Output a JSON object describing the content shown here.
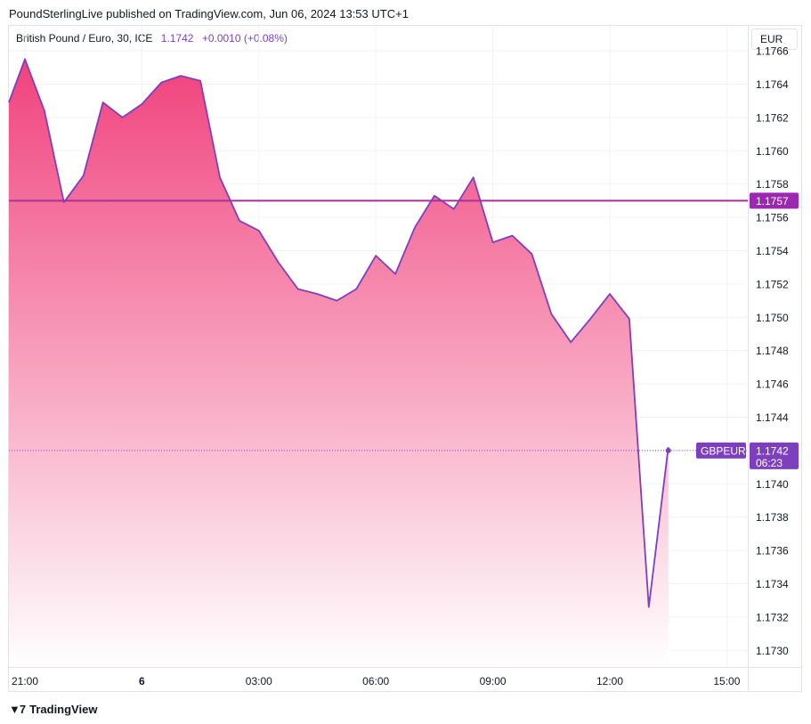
{
  "header": {
    "publisher": "PoundSterlingLive published on TradingView.com, Jun 06, 2024 13:53 UTC+1"
  },
  "legend": {
    "symbol": "British Pound / Euro, 30, ICE",
    "value": "1.1742",
    "change": "+0.0010 (+0.08%)"
  },
  "currency_label": "EUR",
  "footer": {
    "brand": "TradingView",
    "logo_icon": "tradingview-logo-icon"
  },
  "colors": {
    "line": "#7e3fbf",
    "fill_top": "#f0427c",
    "fill_bottom": "#ffffff",
    "level_line": "#a92f9a",
    "level_box": "#9c27b0",
    "price_box": "#7e3fbf",
    "grid": "#f0f2f5"
  },
  "chart_data": {
    "type": "area",
    "title": "British Pound / Euro, 30, ICE",
    "ylim": [
      1.1729,
      1.17675
    ],
    "y_ticks": [
      "1.1766",
      "1.1764",
      "1.1762",
      "1.1760",
      "1.1758",
      "1.1756",
      "1.1754",
      "1.1752",
      "1.1750",
      "1.1748",
      "1.1746",
      "1.1744",
      "1.1742",
      "1.1740",
      "1.1738",
      "1.1736",
      "1.1734",
      "1.1732",
      "1.1730"
    ],
    "x_ticks": [
      {
        "label": "21:00",
        "i": 1
      },
      {
        "label": "6",
        "i": 7
      },
      {
        "label": "03:00",
        "i": 13
      },
      {
        "label": "06:00",
        "i": 19
      },
      {
        "label": "09:00",
        "i": 25
      },
      {
        "label": "12:00",
        "i": 31
      },
      {
        "label": "15:00",
        "i": 37
      }
    ],
    "x_range": [
      0.1,
      38.1
    ],
    "series": [
      {
        "values": [
          1.17629,
          1.17655,
          1.17624,
          1.17569,
          1.17585,
          1.17629,
          1.1762,
          1.17628,
          1.17641,
          1.17645,
          1.17642,
          1.17584,
          1.17558,
          1.17552,
          1.17533,
          1.17517,
          1.17514,
          1.1751,
          1.17517,
          1.17537,
          1.17526,
          1.17554,
          1.17573,
          1.17565,
          1.17584,
          1.17545,
          1.17549,
          1.17538,
          1.17502,
          1.17485,
          1.17499,
          1.17514,
          1.17499,
          1.17326,
          1.17422
        ]
      }
    ],
    "horizontal_line": {
      "value": 1.1757,
      "label": "1.1757"
    },
    "last_price": {
      "value": 1.1742,
      "label": "1.1742",
      "countdown": "06:23",
      "symbol_tag": "GBPEUR"
    }
  }
}
